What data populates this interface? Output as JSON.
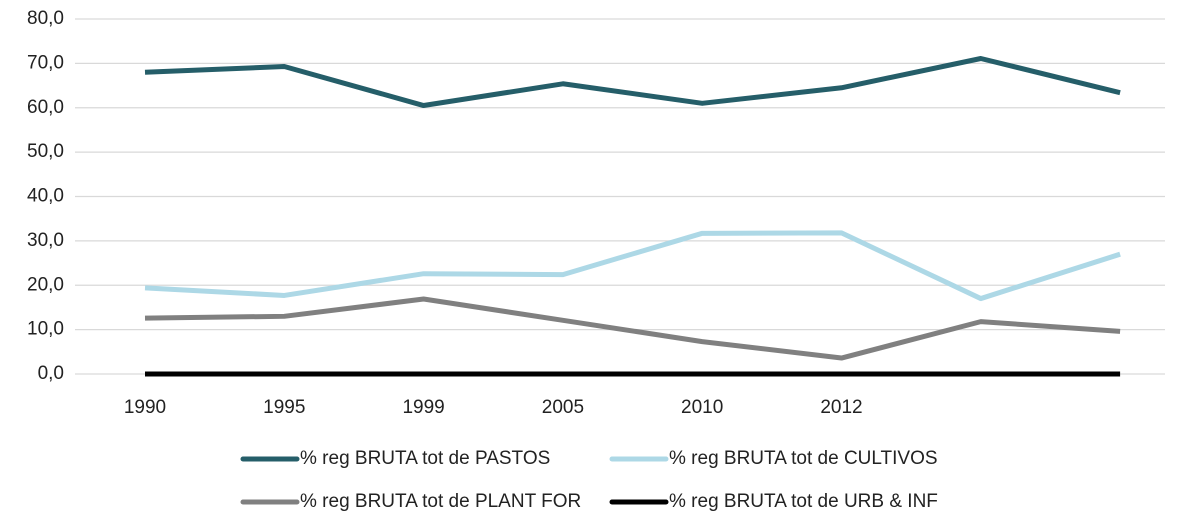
{
  "chart_data": {
    "type": "line",
    "categories": [
      "1990",
      "1995",
      "1999",
      "2005",
      "2010",
      "2012",
      null,
      null
    ],
    "series": [
      {
        "name": "% reg BRUTA tot de PASTOS",
        "color": "#255e69",
        "values": [
          68.0,
          69.3,
          60.5,
          65.4,
          61.0,
          64.5,
          71.1,
          63.4
        ]
      },
      {
        "name": "% reg BRUTA tot de CULTIVOS",
        "color": "#add8e6",
        "values": [
          19.4,
          17.7,
          22.6,
          22.4,
          31.7,
          31.8,
          17.0,
          27.0
        ]
      },
      {
        "name": "% reg BRUTA tot de PLANT FOR",
        "color": "#808080",
        "values": [
          12.6,
          13.0,
          16.9,
          12.1,
          7.3,
          3.6,
          11.8,
          9.6
        ]
      },
      {
        "name": "% reg BRUTA tot de URB & INF",
        "color": "#000000",
        "values": [
          0,
          0,
          0,
          0,
          0,
          0,
          0,
          0
        ]
      }
    ],
    "ylim": [
      0,
      80
    ],
    "yticks": [
      {
        "value": 0,
        "label": "0,0"
      },
      {
        "value": 10,
        "label": "10,0"
      },
      {
        "value": 20,
        "label": "20,0"
      },
      {
        "value": 30,
        "label": "30,0"
      },
      {
        "value": 40,
        "label": "40,0"
      },
      {
        "value": 50,
        "label": "50,0"
      },
      {
        "value": 60,
        "label": "60,0"
      },
      {
        "value": 70,
        "label": "70,0"
      },
      {
        "value": 80,
        "label": "80,0"
      }
    ],
    "grid": true,
    "legend": "bottom"
  }
}
